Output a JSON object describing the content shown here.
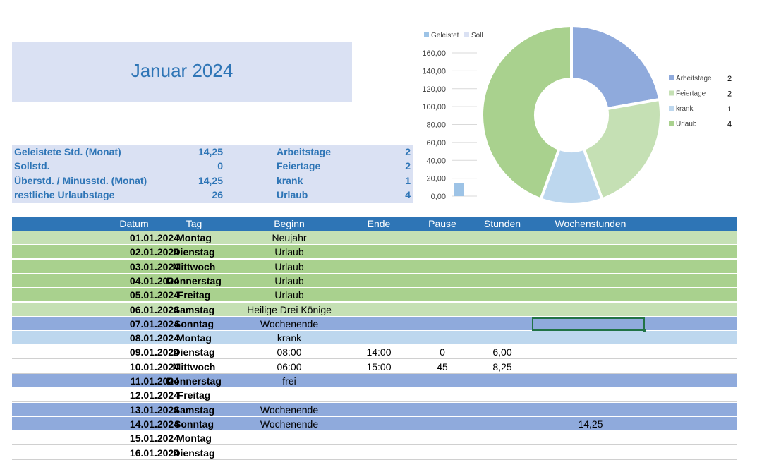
{
  "title": "Januar 2024",
  "summary": {
    "left": [
      {
        "label": "Geleistete Std. (Monat)",
        "value": "14,25"
      },
      {
        "label": "Sollstd.",
        "value": "0"
      },
      {
        "label": "Überstd. / Minusstd. (Monat)",
        "value": "14,25"
      },
      {
        "label": "restliche Urlaubstage",
        "value": "26"
      }
    ],
    "right": [
      {
        "label": "Arbeitstage",
        "value": "2"
      },
      {
        "label": "Feiertage",
        "value": "2"
      },
      {
        "label": "krank",
        "value": "1"
      },
      {
        "label": "Urlaub",
        "value": "4"
      }
    ]
  },
  "chart_data": [
    {
      "type": "bar",
      "categories": [
        ""
      ],
      "series": [
        {
          "name": "Geleistet",
          "values": [
            14.25
          ],
          "color": "#9dc3e6"
        },
        {
          "name": "Soll",
          "values": [
            0
          ],
          "color": "#dae1f3"
        }
      ],
      "yticks": [
        "160,00",
        "140,00",
        "120,00",
        "100,00",
        "80,00",
        "60,00",
        "40,00",
        "20,00",
        "0,00"
      ],
      "ylim": [
        0,
        160
      ],
      "legend": "top"
    },
    {
      "type": "pie",
      "categories": [
        "Arbeitstage",
        "Feiertage",
        "krank",
        "Urlaub"
      ],
      "values": [
        2,
        2,
        1,
        4
      ],
      "labels": [
        "2",
        "2",
        "1",
        "4"
      ],
      "colors": [
        "#8faadc",
        "#c5e0b4",
        "#bdd7ee",
        "#a9d18e"
      ],
      "legend": "right"
    }
  ],
  "table": {
    "headers": [
      "Datum",
      "Tag",
      "Beginn",
      "Ende",
      "Pause",
      "Stunden",
      "Wochenstunden"
    ],
    "rows": [
      {
        "date": "01.01.2024",
        "day": "Montag",
        "begin": "Neujahr",
        "end": "",
        "pause": "",
        "hours": "",
        "week": "",
        "color": "#c5e0b4"
      },
      {
        "date": "02.01.2024",
        "day": "Dienstag",
        "begin": "Urlaub",
        "end": "",
        "pause": "",
        "hours": "",
        "week": "",
        "color": "#a9d18e"
      },
      {
        "date": "03.01.2024",
        "day": "Mittwoch",
        "begin": "Urlaub",
        "end": "",
        "pause": "",
        "hours": "",
        "week": "",
        "color": "#a9d18e"
      },
      {
        "date": "04.01.2024",
        "day": "Donnerstag",
        "begin": "Urlaub",
        "end": "",
        "pause": "",
        "hours": "",
        "week": "",
        "color": "#a9d18e"
      },
      {
        "date": "05.01.2024",
        "day": "Freitag",
        "begin": "Urlaub",
        "end": "",
        "pause": "",
        "hours": "",
        "week": "",
        "color": "#a9d18e"
      },
      {
        "date": "06.01.2024",
        "day": "Samstag",
        "begin": "Heilige Drei Könige",
        "end": "",
        "pause": "",
        "hours": "",
        "week": "",
        "color": "#c5e0b4"
      },
      {
        "date": "07.01.2024",
        "day": "Sonntag",
        "begin": "Wochenende",
        "end": "",
        "pause": "",
        "hours": "",
        "week": "",
        "color": "#8faadc"
      },
      {
        "date": "08.01.2024",
        "day": "Montag",
        "begin": "krank",
        "end": "",
        "pause": "",
        "hours": "",
        "week": "",
        "color": "#bdd7ee"
      },
      {
        "date": "09.01.2024",
        "day": "Dienstag",
        "begin": "08:00",
        "end": "14:00",
        "pause": "0",
        "hours": "6,00",
        "week": "",
        "color": "#ffffff"
      },
      {
        "date": "10.01.2024",
        "day": "Mittwoch",
        "begin": "06:00",
        "end": "15:00",
        "pause": "45",
        "hours": "8,25",
        "week": "",
        "color": "#ffffff"
      },
      {
        "date": "11.01.2024",
        "day": "Donnerstag",
        "begin": "frei",
        "end": "",
        "pause": "",
        "hours": "",
        "week": "",
        "color": "#8faadc"
      },
      {
        "date": "12.01.2024",
        "day": "Freitag",
        "begin": "",
        "end": "",
        "pause": "",
        "hours": "",
        "week": "",
        "color": "#ffffff"
      },
      {
        "date": "13.01.2024",
        "day": "Samstag",
        "begin": "Wochenende",
        "end": "",
        "pause": "",
        "hours": "",
        "week": "",
        "color": "#8faadc"
      },
      {
        "date": "14.01.2024",
        "day": "Sonntag",
        "begin": "Wochenende",
        "end": "",
        "pause": "",
        "hours": "",
        "week": "14,25",
        "color": "#8faadc"
      },
      {
        "date": "15.01.2024",
        "day": "Montag",
        "begin": "",
        "end": "",
        "pause": "",
        "hours": "",
        "week": "",
        "color": "#ffffff"
      },
      {
        "date": "16.01.2024",
        "day": "Dienstag",
        "begin": "",
        "end": "",
        "pause": "",
        "hours": "",
        "week": "",
        "color": "#ffffff"
      }
    ]
  }
}
